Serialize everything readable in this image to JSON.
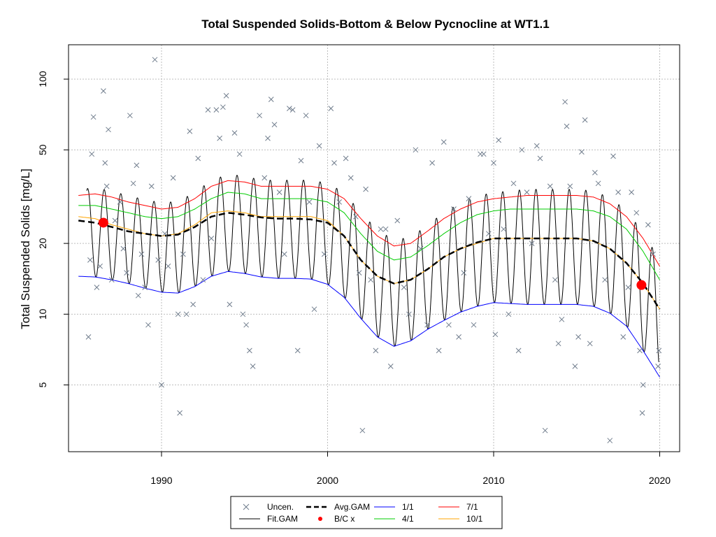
{
  "chart_data": {
    "type": "line",
    "title": "Total Suspended Solids-Bottom & Below Pycnocline at WT1.1",
    "xlabel": "",
    "ylabel": "Total Suspended Solids [mg/L]",
    "y_scale": "log",
    "xlim": [
      1984.4,
      2021.2
    ],
    "ylim": [
      2.6,
      140
    ],
    "x_ticks": [
      1990,
      2000,
      2010,
      2020
    ],
    "y_ticks": [
      5,
      10,
      20,
      50,
      100
    ],
    "grid": true,
    "legend_position": "bottom",
    "legend": [
      {
        "label": "Uncen.",
        "symbol": "x",
        "color": "#6e7b8b"
      },
      {
        "label": "Fit.GAM",
        "symbol": "line",
        "color": "#000000"
      },
      {
        "label": "Avg.GAM",
        "symbol": "dashed",
        "color": "#000000"
      },
      {
        "label": "B/C x",
        "symbol": "dot",
        "color": "#ff0000"
      },
      {
        "label": "1/1",
        "symbol": "line",
        "color": "#0000ff"
      },
      {
        "label": "4/1",
        "symbol": "line",
        "color": "#00cc00"
      },
      {
        "label": "7/1",
        "symbol": "line",
        "color": "#ff0000"
      },
      {
        "label": "10/1",
        "symbol": "line",
        "color": "#ffa500"
      }
    ],
    "series": [
      {
        "name": "1/1",
        "color": "#0000ff",
        "x": [
          1985.0,
          1986.0,
          1987.0,
          1988.0,
          1989.0,
          1990.0,
          1991.0,
          1992.0,
          1993.0,
          1994.0,
          1995.0,
          1996.0,
          1997.0,
          1998.0,
          1999.0,
          2000.0,
          2001.0,
          2002.0,
          2003.0,
          2004.0,
          2005.0,
          2006.0,
          2007.0,
          2008.0,
          2009.0,
          2010.0,
          2011.0,
          2012.0,
          2013.0,
          2014.0,
          2015.0,
          2016.0,
          2017.0,
          2018.0,
          2019.0,
          2020.0
        ],
        "y": [
          14.5,
          14.4,
          14.0,
          13.5,
          12.9,
          12.4,
          12.3,
          13.1,
          14.5,
          15.2,
          14.9,
          14.4,
          14.2,
          14.2,
          14.1,
          13.4,
          11.8,
          9.6,
          8.0,
          7.3,
          7.7,
          8.6,
          9.4,
          10.2,
          10.8,
          11.2,
          11.1,
          11.0,
          11.0,
          11.0,
          11.0,
          10.8,
          10.1,
          8.9,
          7.0,
          5.4
        ]
      },
      {
        "name": "4/1",
        "color": "#00cc00",
        "x": [
          1985.0,
          1986.0,
          1987.0,
          1988.0,
          1989.0,
          1990.0,
          1991.0,
          1992.0,
          1993.0,
          1994.0,
          1995.0,
          1996.0,
          1997.0,
          1998.0,
          1999.0,
          2000.0,
          2001.0,
          2002.0,
          2003.0,
          2004.0,
          2005.0,
          2006.0,
          2007.0,
          2008.0,
          2009.0,
          2010.0,
          2011.0,
          2012.0,
          2013.0,
          2014.0,
          2015.0,
          2016.0,
          2017.0,
          2018.0,
          2019.0,
          2020.0
        ],
        "y": [
          29.0,
          29.0,
          28.0,
          27.0,
          26.0,
          25.5,
          26.0,
          28.0,
          31.0,
          33.0,
          32.5,
          31.0,
          31.0,
          31.0,
          31.0,
          30.0,
          27.0,
          22.0,
          18.5,
          17.0,
          17.5,
          19.5,
          22.0,
          24.5,
          26.5,
          27.5,
          28.0,
          28.0,
          28.0,
          28.0,
          28.0,
          27.5,
          26.0,
          23.0,
          18.5,
          14.0
        ]
      },
      {
        "name": "7/1",
        "color": "#ff0000",
        "x": [
          1985.0,
          1986.0,
          1987.0,
          1988.0,
          1989.0,
          1990.0,
          1991.0,
          1992.0,
          1993.0,
          1994.0,
          1995.0,
          1996.0,
          1997.0,
          1998.0,
          1999.0,
          2000.0,
          2001.0,
          2002.0,
          2003.0,
          2004.0,
          2005.0,
          2006.0,
          2007.0,
          2008.0,
          2009.0,
          2010.0,
          2011.0,
          2012.0,
          2013.0,
          2014.0,
          2015.0,
          2016.0,
          2017.0,
          2018.0,
          2019.0,
          2020.0
        ],
        "y": [
          32.0,
          32.5,
          31.5,
          30.0,
          29.0,
          28.0,
          28.5,
          31.0,
          35.0,
          37.0,
          36.5,
          35.0,
          35.0,
          35.0,
          35.0,
          34.0,
          31.0,
          25.5,
          21.5,
          19.5,
          20.0,
          22.5,
          25.5,
          28.0,
          30.0,
          31.0,
          31.5,
          32.0,
          32.0,
          32.0,
          32.0,
          31.5,
          29.5,
          26.0,
          21.0,
          16.0
        ]
      },
      {
        "name": "10/1",
        "color": "#ffa500",
        "x": [
          1985.0,
          1986.0,
          1987.0,
          1988.0,
          1989.0,
          1990.0,
          1991.0,
          1992.0,
          1993.0,
          1994.0,
          1995.0,
          1996.0,
          1997.0,
          1998.0,
          1999.0,
          2000.0,
          2001.0,
          2002.0,
          2003.0,
          2004.0,
          2005.0,
          2006.0,
          2007.0,
          2008.0,
          2009.0,
          2010.0,
          2011.0,
          2012.0,
          2013.0,
          2014.0,
          2015.0,
          2016.0,
          2017.0,
          2018.0,
          2019.0,
          2020.0
        ],
        "y": [
          26.0,
          25.5,
          24.0,
          23.0,
          22.0,
          21.5,
          22.0,
          24.0,
          27.0,
          27.5,
          27.0,
          26.0,
          26.0,
          26.0,
          26.0,
          25.0,
          21.5,
          17.0,
          14.5,
          13.5,
          14.0,
          15.5,
          17.5,
          19.0,
          20.0,
          21.0,
          21.0,
          21.0,
          21.0,
          21.0,
          21.0,
          20.5,
          19.0,
          16.5,
          13.5,
          10.5
        ]
      },
      {
        "name": "Avg.GAM",
        "color": "#000000",
        "x": [
          1985.0,
          1986.0,
          1987.0,
          1988.0,
          1989.0,
          1990.0,
          1991.0,
          1992.0,
          1993.0,
          1994.0,
          1995.0,
          1996.0,
          1997.0,
          1998.0,
          1999.0,
          2000.0,
          2001.0,
          2002.0,
          2003.0,
          2004.0,
          2005.0,
          2006.0,
          2007.0,
          2008.0,
          2009.0,
          2010.0,
          2011.0,
          2012.0,
          2013.0,
          2014.0,
          2015.0,
          2016.0,
          2017.0,
          2018.0,
          2019.0,
          2020.0
        ],
        "y": [
          25.0,
          24.5,
          23.5,
          22.5,
          22.0,
          21.5,
          21.8,
          23.5,
          26.0,
          27.0,
          26.5,
          25.8,
          25.5,
          25.5,
          25.3,
          24.5,
          21.5,
          17.0,
          14.5,
          13.5,
          14.0,
          15.5,
          17.5,
          19.0,
          20.2,
          21.0,
          21.0,
          21.0,
          21.0,
          21.0,
          21.0,
          20.5,
          19.0,
          16.5,
          13.5,
          10.5
        ]
      }
    ],
    "fit_gam": {
      "name": "Fit.GAM",
      "description_of_shape": "seasonal oscillation between 1/1 (low) and 7/1 (high) curves each year",
      "start": 1985.5,
      "end": 2019.95
    },
    "bc_points": [
      {
        "x": 1986.5,
        "y": 24.5
      },
      {
        "x": 2018.9,
        "y": 13.3
      }
    ],
    "uncensored_points": [
      {
        "x": 1985.6,
        "y": 8.0
      },
      {
        "x": 1985.7,
        "y": 17.0
      },
      {
        "x": 1985.8,
        "y": 48.0
      },
      {
        "x": 1985.9,
        "y": 69.0
      },
      {
        "x": 1986.1,
        "y": 13.0
      },
      {
        "x": 1986.3,
        "y": 16.0
      },
      {
        "x": 1986.5,
        "y": 89.0
      },
      {
        "x": 1986.6,
        "y": 44.0
      },
      {
        "x": 1986.7,
        "y": 35.0
      },
      {
        "x": 1986.8,
        "y": 61.0
      },
      {
        "x": 1987.0,
        "y": 14.0
      },
      {
        "x": 1987.2,
        "y": 25.0
      },
      {
        "x": 1987.5,
        "y": 30.0
      },
      {
        "x": 1987.7,
        "y": 19.0
      },
      {
        "x": 1987.9,
        "y": 15.0
      },
      {
        "x": 1988.1,
        "y": 70.0
      },
      {
        "x": 1988.3,
        "y": 36.0
      },
      {
        "x": 1988.5,
        "y": 43.0
      },
      {
        "x": 1988.6,
        "y": 12.0
      },
      {
        "x": 1988.8,
        "y": 18.0
      },
      {
        "x": 1989.0,
        "y": 13.0
      },
      {
        "x": 1989.2,
        "y": 9.0
      },
      {
        "x": 1989.4,
        "y": 35.0
      },
      {
        "x": 1989.6,
        "y": 121.0
      },
      {
        "x": 1989.8,
        "y": 17.0
      },
      {
        "x": 1990.0,
        "y": 5.0
      },
      {
        "x": 1990.2,
        "y": 22.0
      },
      {
        "x": 1990.4,
        "y": 16.0
      },
      {
        "x": 1990.7,
        "y": 38.0
      },
      {
        "x": 1991.0,
        "y": 10.0
      },
      {
        "x": 1991.1,
        "y": 3.8
      },
      {
        "x": 1991.3,
        "y": 18.0
      },
      {
        "x": 1991.5,
        "y": 10.0
      },
      {
        "x": 1991.7,
        "y": 60.0
      },
      {
        "x": 1991.9,
        "y": 11.0
      },
      {
        "x": 1992.2,
        "y": 46.0
      },
      {
        "x": 1992.5,
        "y": 14.0
      },
      {
        "x": 1992.8,
        "y": 74.0
      },
      {
        "x": 1993.0,
        "y": 21.0
      },
      {
        "x": 1993.3,
        "y": 74.0
      },
      {
        "x": 1993.5,
        "y": 56.0
      },
      {
        "x": 1993.7,
        "y": 76.0
      },
      {
        "x": 1993.9,
        "y": 85.0
      },
      {
        "x": 1994.1,
        "y": 11.0
      },
      {
        "x": 1994.4,
        "y": 59.0
      },
      {
        "x": 1994.7,
        "y": 48.0
      },
      {
        "x": 1994.9,
        "y": 10.0
      },
      {
        "x": 1995.1,
        "y": 9.0
      },
      {
        "x": 1995.3,
        "y": 7.0
      },
      {
        "x": 1995.5,
        "y": 6.0
      },
      {
        "x": 1995.9,
        "y": 70.0
      },
      {
        "x": 1996.2,
        "y": 38.0
      },
      {
        "x": 1996.4,
        "y": 56.0
      },
      {
        "x": 1996.6,
        "y": 82.0
      },
      {
        "x": 1996.8,
        "y": 64.0
      },
      {
        "x": 1997.1,
        "y": 33.0
      },
      {
        "x": 1997.4,
        "y": 18.0
      },
      {
        "x": 1997.7,
        "y": 75.0
      },
      {
        "x": 1997.9,
        "y": 74.0
      },
      {
        "x": 1998.2,
        "y": 7.0
      },
      {
        "x": 1998.4,
        "y": 45.0
      },
      {
        "x": 1998.7,
        "y": 70.0
      },
      {
        "x": 1998.9,
        "y": 30.0
      },
      {
        "x": 1999.2,
        "y": 10.5
      },
      {
        "x": 1999.5,
        "y": 52.0
      },
      {
        "x": 1999.8,
        "y": 18.0
      },
      {
        "x": 2000.2,
        "y": 75.0
      },
      {
        "x": 2000.4,
        "y": 44.0
      },
      {
        "x": 2000.7,
        "y": 30.0
      },
      {
        "x": 2001.1,
        "y": 46.0
      },
      {
        "x": 2001.4,
        "y": 38.0
      },
      {
        "x": 2001.7,
        "y": 26.0
      },
      {
        "x": 2001.9,
        "y": 15.0
      },
      {
        "x": 2002.1,
        "y": 3.2
      },
      {
        "x": 2002.3,
        "y": 34.0
      },
      {
        "x": 2002.6,
        "y": 14.0
      },
      {
        "x": 2002.9,
        "y": 7.0
      },
      {
        "x": 2003.2,
        "y": 23.0
      },
      {
        "x": 2003.5,
        "y": 23.0
      },
      {
        "x": 2003.8,
        "y": 6.0
      },
      {
        "x": 2004.2,
        "y": 25.0
      },
      {
        "x": 2004.6,
        "y": 13.0
      },
      {
        "x": 2004.9,
        "y": 10.0
      },
      {
        "x": 2005.3,
        "y": 50.0
      },
      {
        "x": 2005.6,
        "y": 19.0
      },
      {
        "x": 2006.0,
        "y": 9.0
      },
      {
        "x": 2006.3,
        "y": 44.0
      },
      {
        "x": 2006.7,
        "y": 7.0
      },
      {
        "x": 2007.0,
        "y": 54.0
      },
      {
        "x": 2007.3,
        "y": 9.0
      },
      {
        "x": 2007.6,
        "y": 28.0
      },
      {
        "x": 2007.9,
        "y": 8.0
      },
      {
        "x": 2008.2,
        "y": 15.0
      },
      {
        "x": 2008.5,
        "y": 31.0
      },
      {
        "x": 2008.8,
        "y": 9.0
      },
      {
        "x": 2009.2,
        "y": 48.0
      },
      {
        "x": 2009.4,
        "y": 48.0
      },
      {
        "x": 2009.7,
        "y": 22.0
      },
      {
        "x": 2010.0,
        "y": 44.0
      },
      {
        "x": 2010.1,
        "y": 8.2
      },
      {
        "x": 2010.3,
        "y": 55.0
      },
      {
        "x": 2010.6,
        "y": 23.0
      },
      {
        "x": 2010.9,
        "y": 10.0
      },
      {
        "x": 2011.2,
        "y": 36.0
      },
      {
        "x": 2011.5,
        "y": 7.0
      },
      {
        "x": 2011.7,
        "y": 50.0
      },
      {
        "x": 2012.0,
        "y": 33.0
      },
      {
        "x": 2012.3,
        "y": 20.0
      },
      {
        "x": 2012.6,
        "y": 52.0
      },
      {
        "x": 2012.8,
        "y": 46.0
      },
      {
        "x": 2013.1,
        "y": 3.2
      },
      {
        "x": 2013.4,
        "y": 35.0
      },
      {
        "x": 2013.7,
        "y": 14.0
      },
      {
        "x": 2013.9,
        "y": 7.5
      },
      {
        "x": 2014.1,
        "y": 9.5
      },
      {
        "x": 2014.3,
        "y": 80.0
      },
      {
        "x": 2014.4,
        "y": 63.0
      },
      {
        "x": 2014.6,
        "y": 35.0
      },
      {
        "x": 2014.9,
        "y": 6.0
      },
      {
        "x": 2015.1,
        "y": 8.0
      },
      {
        "x": 2015.3,
        "y": 49.0
      },
      {
        "x": 2015.5,
        "y": 67.0
      },
      {
        "x": 2015.8,
        "y": 7.5
      },
      {
        "x": 2016.1,
        "y": 40.0
      },
      {
        "x": 2016.3,
        "y": 36.0
      },
      {
        "x": 2016.7,
        "y": 14.0
      },
      {
        "x": 2017.0,
        "y": 2.9
      },
      {
        "x": 2017.2,
        "y": 47.0
      },
      {
        "x": 2017.5,
        "y": 33.0
      },
      {
        "x": 2017.8,
        "y": 8.0
      },
      {
        "x": 2018.1,
        "y": 13.0
      },
      {
        "x": 2018.3,
        "y": 33.0
      },
      {
        "x": 2018.6,
        "y": 27.0
      },
      {
        "x": 2018.8,
        "y": 7.0
      },
      {
        "x": 2018.95,
        "y": 3.8
      },
      {
        "x": 2019.0,
        "y": 5.0
      },
      {
        "x": 2019.3,
        "y": 24.0
      },
      {
        "x": 2019.6,
        "y": 18.0
      },
      {
        "x": 2019.9,
        "y": 6.0
      },
      {
        "x": 2019.95,
        "y": 7.0
      }
    ]
  }
}
